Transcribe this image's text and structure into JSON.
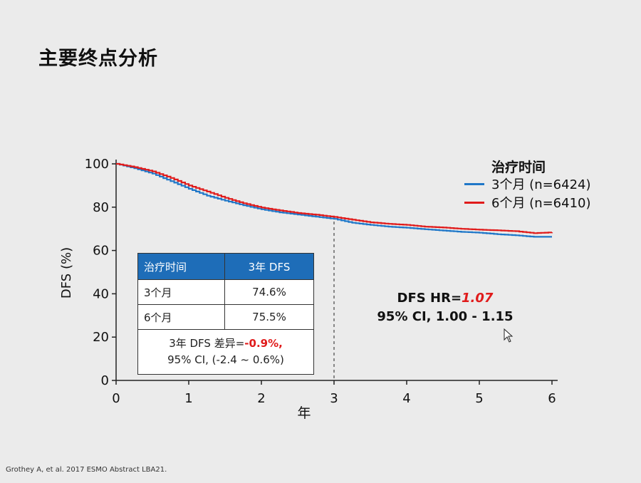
{
  "page": {
    "title": "主要终点分析",
    "citation": "Grothey A, et al. 2017 ESMO Abstract LBA21."
  },
  "legend": {
    "title": "治疗时间",
    "items": [
      {
        "label": "3个月 (n=6424)",
        "color": "#1f77c8"
      },
      {
        "label": "6个月 (n=6410)",
        "color": "#e01b1b"
      }
    ]
  },
  "hr_annotation": {
    "prefix": "DFS HR=",
    "value": "1.07",
    "ci": "95% CI, 1.00 - 1.15"
  },
  "summary_table": {
    "headers": [
      "治疗时间",
      "3年 DFS"
    ],
    "rows": [
      [
        "3个月",
        "74.6%"
      ],
      [
        "6个月",
        "75.5%"
      ]
    ],
    "footer_prefix": "3年 DFS 差异=",
    "footer_value": "-0.9%,",
    "footer_ci": "95% CI, (-2.4 ~ 0.6%)"
  },
  "chart_data": {
    "type": "line",
    "xlabel": "年",
    "ylabel": "DFS (%)",
    "xlim": [
      0,
      6
    ],
    "ylim": [
      0,
      100
    ],
    "xticks": [
      0,
      1,
      2,
      3,
      4,
      5,
      6
    ],
    "yticks": [
      0,
      20,
      40,
      60,
      80,
      100
    ],
    "reference_line_x": 3,
    "series": [
      {
        "name": "3个月 (n=6424)",
        "color": "#1f77c8",
        "x": [
          0,
          0.25,
          0.5,
          0.75,
          1.0,
          1.25,
          1.5,
          1.75,
          2.0,
          2.25,
          2.5,
          2.75,
          3.0,
          3.25,
          3.5,
          3.75,
          4.0,
          4.25,
          4.5,
          4.75,
          5.0,
          5.25,
          5.5,
          5.75,
          6.0
        ],
        "y": [
          100,
          98,
          95.5,
          92,
          88.5,
          85.3,
          83,
          80.9,
          79,
          77.6,
          76.6,
          75.6,
          74.6,
          72.8,
          71.8,
          71.0,
          70.5,
          69.8,
          69.2,
          68.6,
          68.2,
          67.5,
          67.0,
          66.3,
          66.3
        ]
      },
      {
        "name": "6个月 (n=6410)",
        "color": "#e01b1b",
        "x": [
          0,
          0.25,
          0.5,
          0.75,
          1.0,
          1.25,
          1.5,
          1.75,
          2.0,
          2.25,
          2.5,
          2.75,
          3.0,
          3.25,
          3.5,
          3.75,
          4.0,
          4.25,
          4.5,
          4.75,
          5.0,
          5.25,
          5.5,
          5.75,
          6.0
        ],
        "y": [
          100,
          98.5,
          96.5,
          93.5,
          90.0,
          87.2,
          84.3,
          81.8,
          79.8,
          78.5,
          77.3,
          76.5,
          75.5,
          74.2,
          73.0,
          72.3,
          71.8,
          71.0,
          70.6,
          70.0,
          69.6,
          69.3,
          68.9,
          68.0,
          68.4
        ]
      }
    ]
  }
}
